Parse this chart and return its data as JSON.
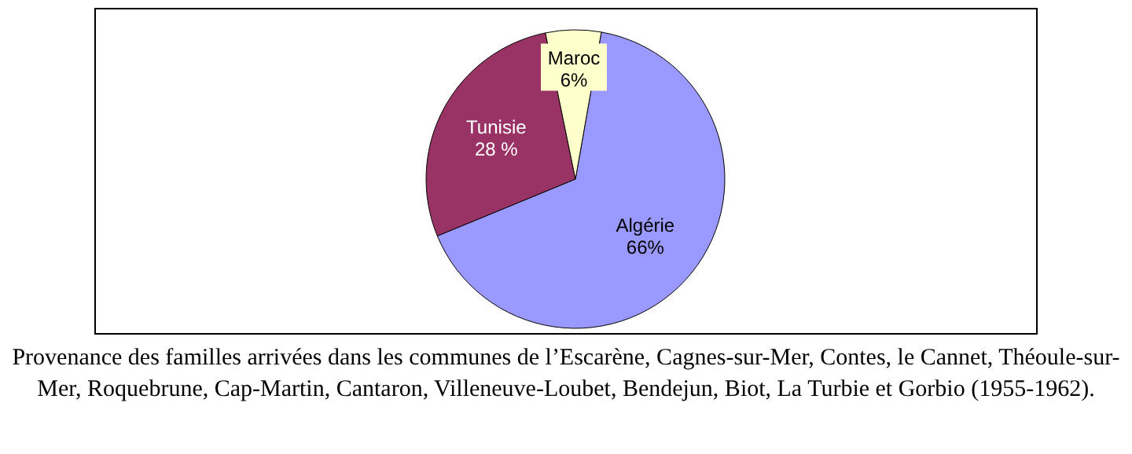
{
  "chart_data": {
    "type": "pie",
    "categories": [
      "Algérie",
      "Tunisie",
      "Maroc"
    ],
    "values": [
      66,
      28,
      6
    ],
    "value_labels": [
      "66%",
      "28 %",
      "6%"
    ],
    "colors": [
      "#9999ff",
      "#993366",
      "#ffffcc"
    ],
    "legend": false,
    "annotations": [
      "Provenance des familles arrivées dans les communes de l’Escarène, Cagnes-sur-Mer, Contes, le Cannet, Théoule-sur-Mer, Roquebrune, Cap-Martin, Cantaron, Villeneuve-Loubet, Bendejun, Biot, La Turbie et Gorbio (1955-1962)."
    ]
  }
}
